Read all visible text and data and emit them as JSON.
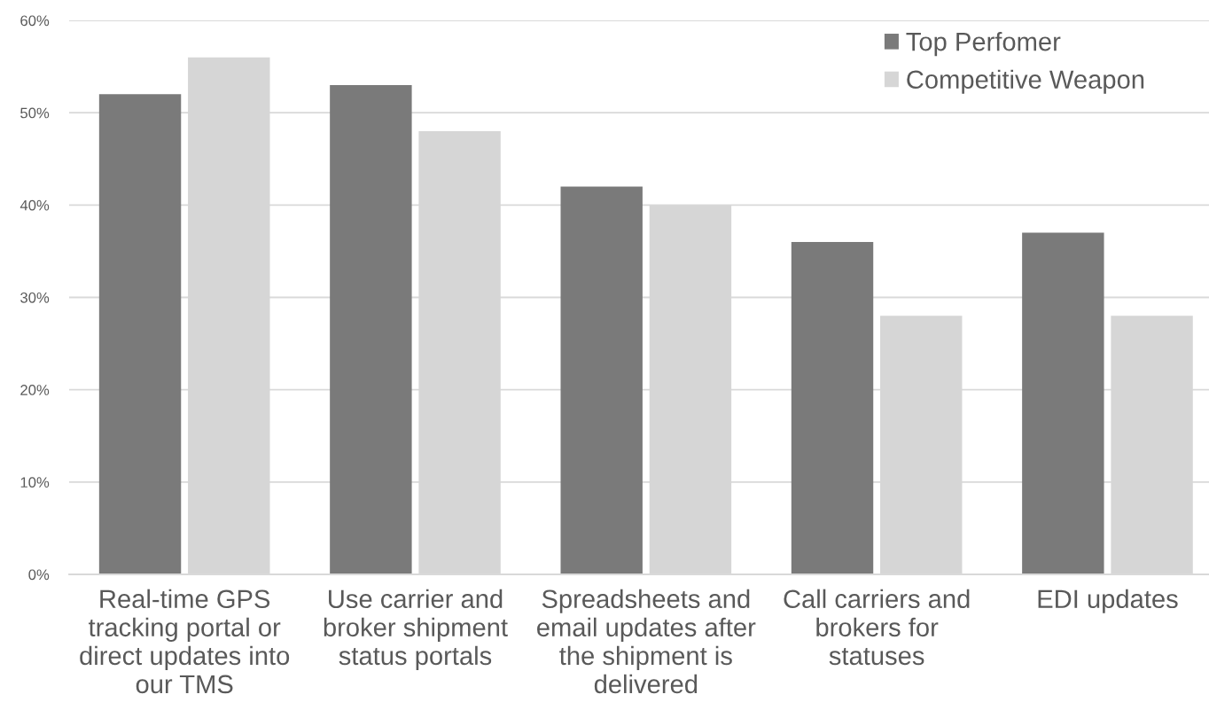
{
  "chart_data": {
    "type": "bar",
    "categories": [
      "Real-time GPS tracking portal or direct updates into our TMS",
      "Use carrier and broker shipment status portals",
      "Spreadsheets and email updates after the shipment is delivered",
      "Call carriers and brokers for statuses",
      "EDI updates"
    ],
    "series": [
      {
        "name": "Top Perfomer",
        "color": "#7a7a7a",
        "values": [
          52,
          53,
          42,
          36,
          37
        ]
      },
      {
        "name": "Competitive Weapon",
        "color": "#d6d6d6",
        "values": [
          56,
          48,
          40,
          28,
          28
        ]
      }
    ],
    "ylim": [
      0,
      60
    ],
    "yticks": [
      {
        "value": 0,
        "label": "0%"
      },
      {
        "value": 10,
        "label": "10%"
      },
      {
        "value": 20,
        "label": "20%"
      },
      {
        "value": 30,
        "label": "30%"
      },
      {
        "value": 40,
        "label": "40%"
      },
      {
        "value": 50,
        "label": "50%"
      },
      {
        "value": 60,
        "label": "60%"
      }
    ],
    "grid": "y",
    "legend": "top right"
  }
}
